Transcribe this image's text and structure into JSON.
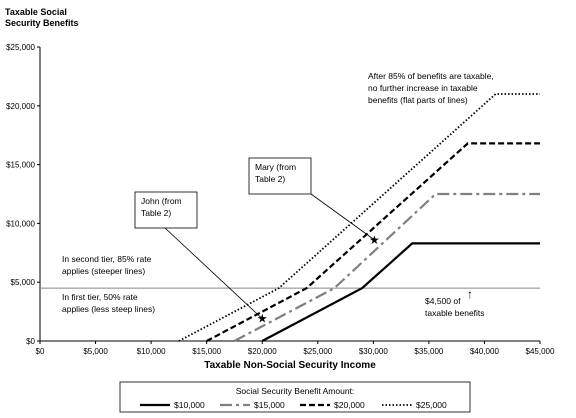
{
  "chart_data": {
    "type": "line",
    "ylabel_line1": "Taxable Social",
    "ylabel_line2": "Security Benefits",
    "xlabel": "Taxable Non-Social Security Income",
    "xlim": [
      0,
      45000
    ],
    "ylim": [
      0,
      25000
    ],
    "xticks": [
      {
        "value": 0,
        "label": "$0"
      },
      {
        "value": 5000,
        "label": "$5,000"
      },
      {
        "value": 10000,
        "label": "$10,000"
      },
      {
        "value": 15000,
        "label": "$15,000"
      },
      {
        "value": 20000,
        "label": "$20,000"
      },
      {
        "value": 25000,
        "label": "$25,000"
      },
      {
        "value": 30000,
        "label": "$30,000"
      },
      {
        "value": 35000,
        "label": "$35,000"
      },
      {
        "value": 40000,
        "label": "$40,000"
      },
      {
        "value": 45000,
        "label": "$45,000"
      }
    ],
    "yticks": [
      {
        "value": 0,
        "label": "$0"
      },
      {
        "value": 5000,
        "label": "$5,000"
      },
      {
        "value": 10000,
        "label": "$10,000"
      },
      {
        "value": 15000,
        "label": "$15,000"
      },
      {
        "value": 20000,
        "label": "$20,000"
      },
      {
        "value": 25000,
        "label": "$25,000"
      }
    ],
    "threshold": 4500,
    "series": [
      {
        "name": "$10,000",
        "color": "#000000",
        "dash": "solid",
        "points": [
          [
            20000,
            0
          ],
          [
            29000,
            4500
          ],
          [
            33500,
            8300
          ],
          [
            45000,
            8300
          ]
        ]
      },
      {
        "name": "$15,000",
        "color": "#808080",
        "dash": "dashdot",
        "points": [
          [
            17500,
            0
          ],
          [
            26500,
            4500
          ],
          [
            35600,
            12500
          ],
          [
            45000,
            12500
          ]
        ]
      },
      {
        "name": "$20,000",
        "color": "#000000",
        "dash": "dashed",
        "points": [
          [
            15000,
            0
          ],
          [
            24000,
            4500
          ],
          [
            38500,
            16800
          ],
          [
            45000,
            16800
          ]
        ]
      },
      {
        "name": "$25,000",
        "color": "#000000",
        "dash": "dotted",
        "points": [
          [
            12500,
            0
          ],
          [
            21500,
            4500
          ],
          [
            41000,
            21000
          ],
          [
            45000,
            21000
          ]
        ]
      }
    ],
    "markers": [
      {
        "name": "john-star",
        "x": 20000,
        "y": 1900,
        "symbol": "★"
      },
      {
        "name": "mary-star",
        "x": 30100,
        "y": 8600,
        "symbol": "★"
      }
    ],
    "annotations": {
      "after85": [
        "After 85% of benefits are taxable,",
        "no further increase in taxable",
        "benefits (flat parts of lines)"
      ],
      "mary": [
        "Mary (from",
        "Table 2)"
      ],
      "john": [
        "John (from",
        "Table 2)"
      ],
      "second_tier": [
        "In second tier, 85% rate",
        "applies (steeper lines)"
      ],
      "first_tier": [
        "In first tier, 50% rate",
        "applies (less steep lines)"
      ],
      "threshold_note": [
        "$4,500 of",
        "taxable benefits"
      ],
      "arrow_symbol": "↑"
    },
    "legend": {
      "title": "Social Security Benefit Amount:",
      "placement": "bottom-center"
    }
  }
}
